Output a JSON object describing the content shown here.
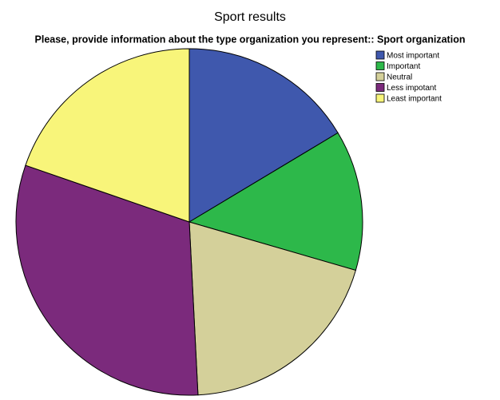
{
  "chart_data": {
    "type": "pie",
    "title": "Sport results",
    "subtitle": "Please, provide information about the type organization you represent:: Sport organization",
    "categories": [
      "Most important",
      "Important",
      "Neutral",
      "Less impotant",
      "Least important"
    ],
    "values": [
      16.4,
      13.1,
      19.7,
      31.1,
      19.7
    ],
    "colors": [
      "#3f58ad",
      "#2db84a",
      "#d4d09a",
      "#7b2a7c",
      "#f8f57a"
    ],
    "legend": "top-right"
  }
}
